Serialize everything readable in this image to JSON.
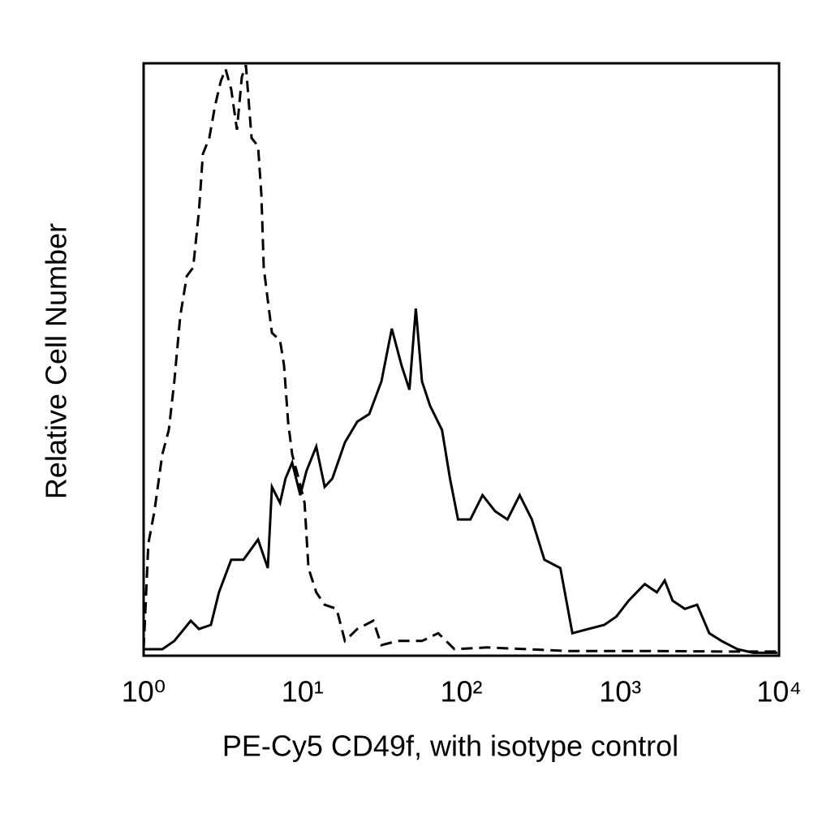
{
  "chart_data": {
    "type": "line",
    "xlabel": "PE-Cy5 CD49f, with isotype control",
    "ylabel": "Relative Cell Number",
    "xscale": "log",
    "xlim": [
      1,
      10000
    ],
    "xticks": [
      {
        "value": 1,
        "label": "10⁰"
      },
      {
        "value": 10,
        "label": "10¹"
      },
      {
        "value": 100,
        "label": "10²"
      },
      {
        "value": 1000,
        "label": "10³"
      },
      {
        "value": 10000,
        "label": "10⁴"
      }
    ],
    "ylim": [
      0,
      100
    ],
    "series": [
      {
        "color": "#000000",
        "line_style": "solid",
        "x": [
          1,
          1.31,
          1.56,
          1.98,
          2.23,
          2.65,
          2.98,
          3.56,
          4.25,
          5.25,
          6.05,
          6.42,
          7.22,
          7.82,
          8.61,
          9.68,
          10.6,
          12.2,
          13.8,
          15.4,
          18.5,
          22.1,
          26.3,
          31.4,
          36.5,
          42.0,
          47.1,
          51.7,
          56.5,
          63.5,
          75.6,
          84.8,
          95.3,
          114,
          136,
          163,
          195,
          233,
          278,
          333,
          420,
          500,
          630,
          795,
          946,
          1131,
          1427,
          1700,
          1906,
          2138,
          2552,
          3047,
          3637,
          4342,
          5468,
          6885,
          9770
        ],
        "values": [
          1.1,
          1.1,
          2.5,
          5.9,
          4.5,
          5.2,
          10.7,
          16.2,
          16.2,
          19.6,
          14.8,
          28.5,
          25.8,
          29.9,
          32.6,
          27.1,
          31.2,
          35.3,
          28.5,
          29.9,
          36.0,
          39.5,
          40.8,
          46.3,
          55.2,
          49.0,
          44.9,
          58.6,
          46.3,
          42.2,
          38.1,
          29.9,
          23.0,
          23.0,
          27.1,
          24.4,
          23.0,
          27.1,
          23.0,
          16.2,
          14.8,
          3.8,
          4.5,
          5.2,
          6.6,
          9.3,
          12.1,
          10.7,
          12.7,
          9.3,
          7.9,
          8.6,
          3.8,
          2.5,
          1.1,
          0.5,
          0.5
        ]
      },
      {
        "color": "#000000",
        "line_style": "dashed",
        "x": [
          1,
          1.07,
          1.17,
          1.31,
          1.44,
          1.56,
          1.7,
          1.87,
          2.05,
          2.23,
          2.36,
          2.59,
          2.82,
          3.06,
          3.28,
          3.56,
          3.87,
          4.15,
          4.4,
          4.78,
          5.25,
          5.51,
          5.7,
          6.05,
          6.42,
          7.22,
          7.65,
          8.12,
          8.61,
          9.46,
          10.3,
          10.9,
          12.2,
          13.8,
          16.4,
          18.5,
          22.1,
          27.9,
          31.4,
          39.7,
          56.5,
          71.5,
          90.5,
          145,
          261,
          470,
          1523,
          4937,
          9770
        ],
        "values": [
          1.1,
          18.9,
          24.4,
          34.0,
          38.1,
          46.3,
          57.3,
          64.1,
          65.5,
          75.1,
          84.7,
          87.4,
          92.9,
          97.0,
          99.0,
          95.6,
          88.8,
          97.7,
          99.7,
          87.4,
          86.0,
          77.8,
          65.5,
          60.0,
          54.5,
          53.2,
          49.0,
          39.5,
          34.0,
          29.9,
          25.8,
          14.8,
          10.7,
          8.6,
          7.9,
          2.5,
          4.5,
          5.9,
          1.8,
          2.5,
          2.5,
          3.8,
          1.1,
          1.4,
          1.1,
          0.8,
          0.8,
          0.7,
          0.7
        ]
      }
    ]
  }
}
